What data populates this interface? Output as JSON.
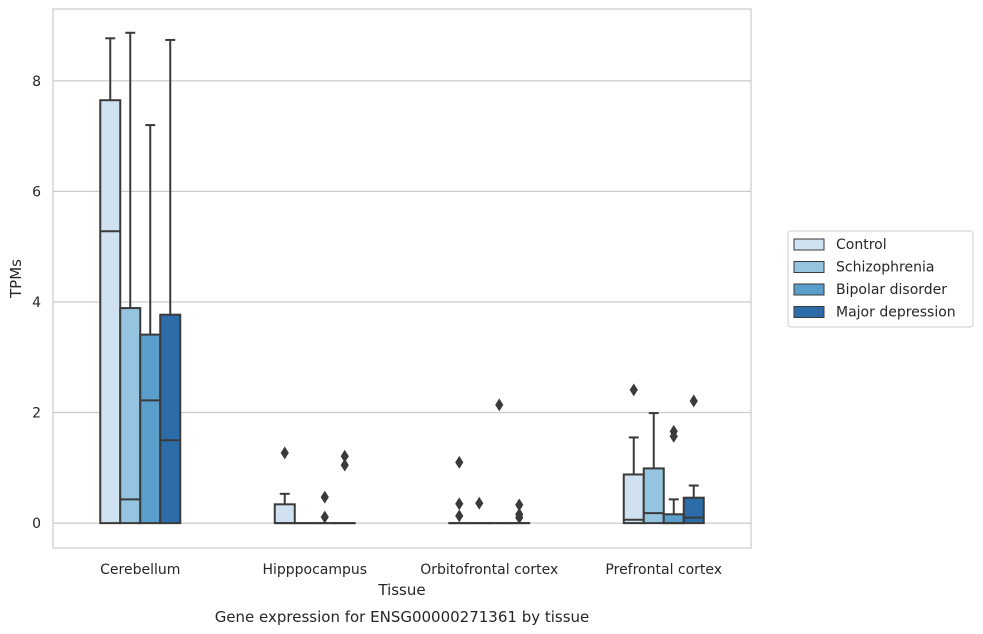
{
  "chart_data": {
    "type": "boxplot",
    "caption": "Gene expression for ENSG00000271361 by tissue",
    "xlabel": "Tissue",
    "ylabel": "TPMs",
    "ylim": [
      -0.45,
      9.3
    ],
    "yticks": [
      0,
      2,
      4,
      6,
      8
    ],
    "ytick_labels": [
      "0",
      "2",
      "4",
      "6",
      "8"
    ],
    "grid": "horizontal",
    "legend_position": "right",
    "categories": [
      "Cerebellum",
      "Hipppocampus",
      "Orbitofrontal cortex",
      "Prefrontal cortex"
    ],
    "series": [
      {
        "name": "Control",
        "color": "#d0e1f2",
        "boxes": [
          {
            "whislo": 0,
            "q1": 0,
            "med": 5.28,
            "q3": 7.65,
            "whishi": 8.77,
            "fliers": []
          },
          {
            "whislo": 0,
            "q1": 0,
            "med": 0,
            "q3": 0.34,
            "whishi": 0.53,
            "fliers": [
              1.27
            ]
          },
          {
            "whislo": 0,
            "q1": 0,
            "med": 0,
            "q3": 0,
            "whishi": 0,
            "fliers": [
              1.1,
              0.35,
              0.13
            ]
          },
          {
            "whislo": 0,
            "q1": 0,
            "med": 0.06,
            "q3": 0.88,
            "whishi": 1.55,
            "fliers": [
              2.41
            ]
          }
        ]
      },
      {
        "name": "Schizophrenia",
        "color": "#94c4df",
        "boxes": [
          {
            "whislo": 0,
            "q1": 0,
            "med": 0.43,
            "q3": 3.89,
            "whishi": 8.87,
            "fliers": []
          },
          {
            "whislo": 0,
            "q1": 0,
            "med": 0,
            "q3": 0,
            "whishi": 0,
            "fliers": []
          },
          {
            "whislo": 0,
            "q1": 0,
            "med": 0,
            "q3": 0,
            "whishi": 0,
            "fliers": [
              0.36
            ]
          },
          {
            "whislo": 0,
            "q1": 0,
            "med": 0.18,
            "q3": 0.99,
            "whishi": 1.99,
            "fliers": []
          }
        ]
      },
      {
        "name": "Bipolar disorder",
        "color": "#5a9fcb",
        "boxes": [
          {
            "whislo": 0,
            "q1": 0,
            "med": 2.22,
            "q3": 3.41,
            "whishi": 7.2,
            "fliers": []
          },
          {
            "whislo": 0,
            "q1": 0,
            "med": 0,
            "q3": 0,
            "whishi": 0,
            "fliers": [
              0.47,
              0.11
            ]
          },
          {
            "whislo": 0,
            "q1": 0,
            "med": 0,
            "q3": 0,
            "whishi": 0,
            "fliers": [
              2.14
            ]
          },
          {
            "whislo": 0,
            "q1": 0,
            "med": 0,
            "q3": 0.16,
            "whishi": 0.43,
            "fliers": [
              1.66,
              1.57
            ]
          }
        ]
      },
      {
        "name": "Major depression",
        "color": "#2b6ca9",
        "boxes": [
          {
            "whislo": 0,
            "q1": 0,
            "med": 1.5,
            "q3": 3.77,
            "whishi": 8.74,
            "fliers": []
          },
          {
            "whislo": 0,
            "q1": 0,
            "med": 0,
            "q3": 0,
            "whishi": 0,
            "fliers": [
              1.21,
              1.05
            ]
          },
          {
            "whislo": 0,
            "q1": 0,
            "med": 0,
            "q3": 0,
            "whishi": 0,
            "fliers": [
              0.33,
              0.16,
              0.1
            ]
          },
          {
            "whislo": 0,
            "q1": 0,
            "med": 0.1,
            "q3": 0.46,
            "whishi": 0.68,
            "fliers": [
              2.21
            ]
          }
        ]
      }
    ]
  }
}
